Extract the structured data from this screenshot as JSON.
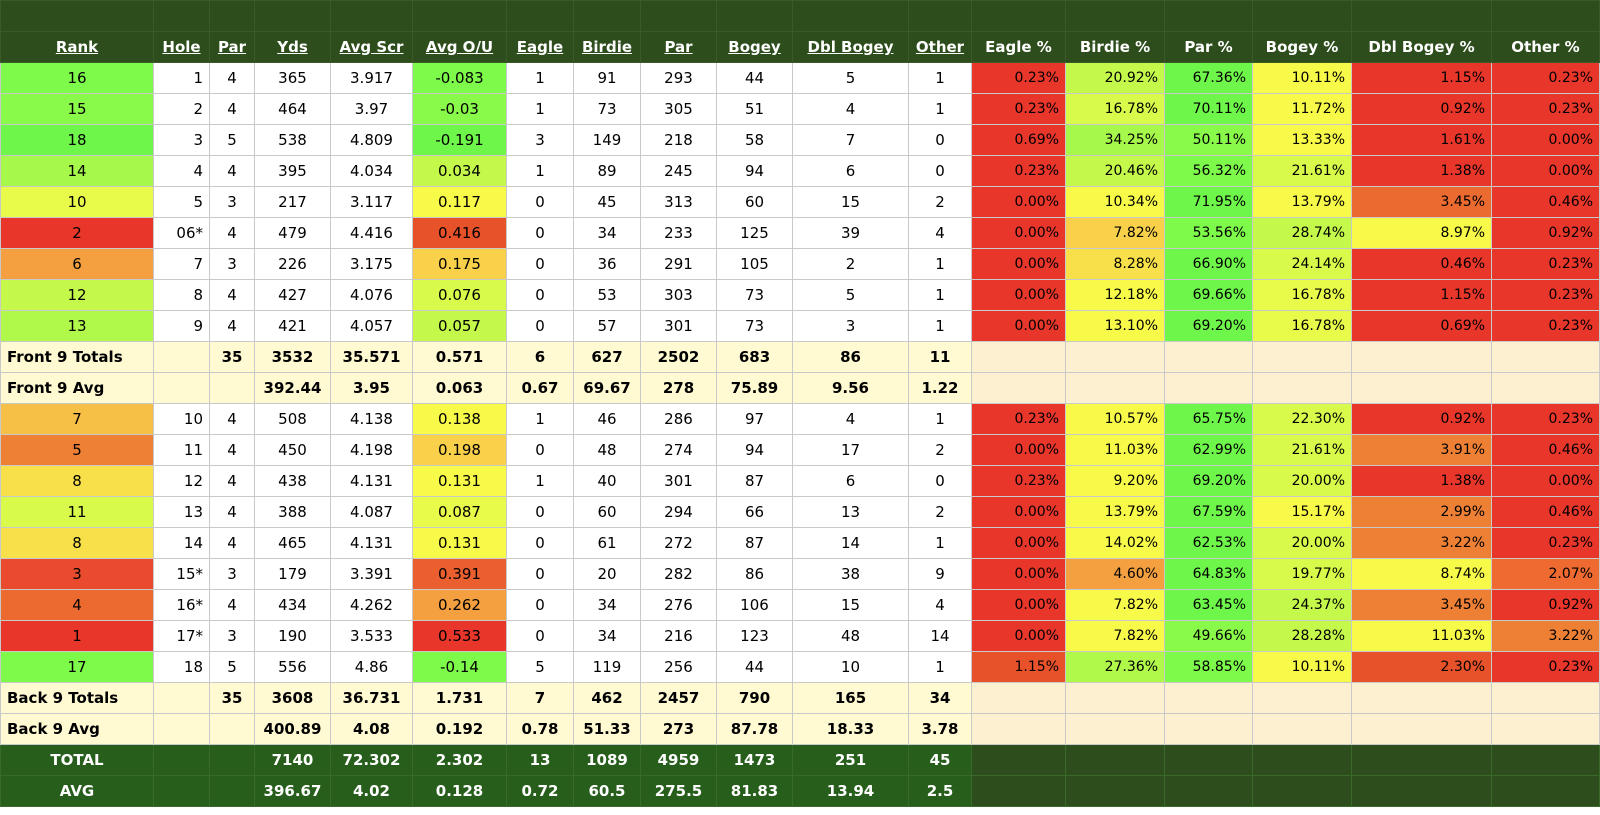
{
  "headers": [
    "Rank",
    "Hole",
    "Par",
    "Yds",
    "Avg Scr",
    "Avg O/U",
    "Eagle",
    "Birdie",
    "Par",
    "Bogey",
    "Dbl Bogey",
    "Other",
    "Eagle %",
    "Birdie %",
    "Par %",
    "Bogey %",
    "Dbl Bogey %",
    "Other %"
  ],
  "rows": [
    {
      "cells": [
        "16",
        "1",
        "4",
        "365",
        "3.917",
        "-0.083",
        "1",
        "91",
        "293",
        "44",
        "5",
        "1",
        "0.23%",
        "20.92%",
        "67.36%",
        "10.11%",
        "1.15%",
        "0.23%"
      ],
      "colors": [
        "#7dfa4a",
        "#ffffff",
        "#ffffff",
        "#ffffff",
        "#ffffff",
        "#7dfa4a",
        "#ffffff",
        "#ffffff",
        "#ffffff",
        "#ffffff",
        "#ffffff",
        "#ffffff",
        "#e8362a",
        "#c4f84a",
        "#6ef64a",
        "#f8fa4a",
        "#e8362a",
        "#e8362a"
      ]
    },
    {
      "cells": [
        "15",
        "2",
        "4",
        "464",
        "3.97",
        "-0.03",
        "1",
        "73",
        "305",
        "51",
        "4",
        "1",
        "0.23%",
        "16.78%",
        "70.11%",
        "11.72%",
        "0.92%",
        "0.23%"
      ],
      "colors": [
        "#8afa4a",
        "#ffffff",
        "#ffffff",
        "#ffffff",
        "#ffffff",
        "#8afa4a",
        "#ffffff",
        "#ffffff",
        "#ffffff",
        "#ffffff",
        "#ffffff",
        "#ffffff",
        "#e8362a",
        "#d8fa4a",
        "#6ef64a",
        "#f8fa4a",
        "#e8362a",
        "#e8362a"
      ]
    },
    {
      "cells": [
        "18",
        "3",
        "5",
        "538",
        "4.809",
        "-0.191",
        "3",
        "149",
        "218",
        "58",
        "7",
        "0",
        "0.69%",
        "34.25%",
        "50.11%",
        "13.33%",
        "1.61%",
        "0.00%"
      ],
      "colors": [
        "#6ef64a",
        "#ffffff",
        "#ffffff",
        "#ffffff",
        "#ffffff",
        "#6ef64a",
        "#ffffff",
        "#ffffff",
        "#ffffff",
        "#ffffff",
        "#ffffff",
        "#ffffff",
        "#e8362a",
        "#a6f84a",
        "#8afa4a",
        "#f8fa4a",
        "#e8362a",
        "#e8362a"
      ]
    },
    {
      "cells": [
        "14",
        "4",
        "4",
        "395",
        "4.034",
        "0.034",
        "1",
        "89",
        "245",
        "94",
        "6",
        "0",
        "0.23%",
        "20.46%",
        "56.32%",
        "21.61%",
        "1.38%",
        "0.00%"
      ],
      "colors": [
        "#a6f84a",
        "#ffffff",
        "#ffffff",
        "#ffffff",
        "#ffffff",
        "#c4f84a",
        "#ffffff",
        "#ffffff",
        "#ffffff",
        "#ffffff",
        "#ffffff",
        "#ffffff",
        "#e8362a",
        "#c4f84a",
        "#7dfa4a",
        "#d8fa4a",
        "#e8362a",
        "#e8362a"
      ]
    },
    {
      "cells": [
        "10",
        "5",
        "3",
        "217",
        "3.117",
        "0.117",
        "0",
        "45",
        "313",
        "60",
        "15",
        "2",
        "0.00%",
        "10.34%",
        "71.95%",
        "13.79%",
        "3.45%",
        "0.46%"
      ],
      "colors": [
        "#e8fa4a",
        "#ffffff",
        "#ffffff",
        "#ffffff",
        "#ffffff",
        "#f8fa4a",
        "#ffffff",
        "#ffffff",
        "#ffffff",
        "#ffffff",
        "#ffffff",
        "#ffffff",
        "#e8362a",
        "#f8fa4a",
        "#6ef64a",
        "#f8fa4a",
        "#ea6a30",
        "#e8362a"
      ]
    },
    {
      "cells": [
        "2",
        "06*",
        "4",
        "479",
        "4.416",
        "0.416",
        "0",
        "34",
        "233",
        "125",
        "39",
        "4",
        "0.00%",
        "7.82%",
        "53.56%",
        "28.74%",
        "8.97%",
        "0.92%"
      ],
      "colors": [
        "#e8362a",
        "#ffffff",
        "#ffffff",
        "#ffffff",
        "#ffffff",
        "#e8522a",
        "#ffffff",
        "#ffffff",
        "#ffffff",
        "#ffffff",
        "#ffffff",
        "#ffffff",
        "#e8362a",
        "#f8d04a",
        "#7dfa4a",
        "#c4f84a",
        "#f8fa4a",
        "#e8362a"
      ]
    },
    {
      "cells": [
        "6",
        "7",
        "3",
        "226",
        "3.175",
        "0.175",
        "0",
        "36",
        "291",
        "105",
        "2",
        "1",
        "0.00%",
        "8.28%",
        "66.90%",
        "24.14%",
        "0.46%",
        "0.23%"
      ],
      "colors": [
        "#f4a040",
        "#ffffff",
        "#ffffff",
        "#ffffff",
        "#ffffff",
        "#f8d04a",
        "#ffffff",
        "#ffffff",
        "#ffffff",
        "#ffffff",
        "#ffffff",
        "#ffffff",
        "#e8362a",
        "#f8e04a",
        "#6ef64a",
        "#d8fa4a",
        "#e8362a",
        "#e8362a"
      ]
    },
    {
      "cells": [
        "12",
        "8",
        "4",
        "427",
        "4.076",
        "0.076",
        "0",
        "53",
        "303",
        "73",
        "5",
        "1",
        "0.00%",
        "12.18%",
        "69.66%",
        "16.78%",
        "1.15%",
        "0.23%"
      ],
      "colors": [
        "#c4f84a",
        "#ffffff",
        "#ffffff",
        "#ffffff",
        "#ffffff",
        "#d8fa4a",
        "#ffffff",
        "#ffffff",
        "#ffffff",
        "#ffffff",
        "#ffffff",
        "#ffffff",
        "#e8362a",
        "#f8fa4a",
        "#6ef64a",
        "#e8fa4a",
        "#e8362a",
        "#e8362a"
      ]
    },
    {
      "cells": [
        "13",
        "9",
        "4",
        "421",
        "4.057",
        "0.057",
        "0",
        "57",
        "301",
        "73",
        "3",
        "1",
        "0.00%",
        "13.10%",
        "69.20%",
        "16.78%",
        "0.69%",
        "0.23%"
      ],
      "colors": [
        "#b0f84a",
        "#ffffff",
        "#ffffff",
        "#ffffff",
        "#ffffff",
        "#c4f84a",
        "#ffffff",
        "#ffffff",
        "#ffffff",
        "#ffffff",
        "#ffffff",
        "#ffffff",
        "#e8362a",
        "#f8fa4a",
        "#6ef64a",
        "#e8fa4a",
        "#e8362a",
        "#e8362a"
      ]
    }
  ],
  "front_totals": {
    "cells": [
      "Front 9 Totals",
      "",
      "35",
      "3532",
      "35.571",
      "0.571",
      "6",
      "627",
      "2502",
      "683",
      "86",
      "11"
    ]
  },
  "front_avg": {
    "cells": [
      "Front 9 Avg",
      "",
      "",
      "392.44",
      "3.95",
      "0.063",
      "0.67",
      "69.67",
      "278",
      "75.89",
      "9.56",
      "1.22"
    ]
  },
  "back_rows": [
    {
      "cells": [
        "7",
        "10",
        "4",
        "508",
        "4.138",
        "0.138",
        "1",
        "46",
        "286",
        "97",
        "4",
        "1",
        "0.23%",
        "10.57%",
        "65.75%",
        "22.30%",
        "0.92%",
        "0.23%"
      ],
      "colors": [
        "#f6c046",
        "#ffffff",
        "#ffffff",
        "#ffffff",
        "#ffffff",
        "#f8fa4a",
        "#ffffff",
        "#ffffff",
        "#ffffff",
        "#ffffff",
        "#ffffff",
        "#ffffff",
        "#e8362a",
        "#f8fa4a",
        "#6ef64a",
        "#d8fa4a",
        "#e8362a",
        "#e8362a"
      ]
    },
    {
      "cells": [
        "5",
        "11",
        "4",
        "450",
        "4.198",
        "0.198",
        "0",
        "48",
        "274",
        "94",
        "17",
        "2",
        "0.00%",
        "11.03%",
        "62.99%",
        "21.61%",
        "3.91%",
        "0.46%"
      ],
      "colors": [
        "#ee8036",
        "#ffffff",
        "#ffffff",
        "#ffffff",
        "#ffffff",
        "#f8d04a",
        "#ffffff",
        "#ffffff",
        "#ffffff",
        "#ffffff",
        "#ffffff",
        "#ffffff",
        "#e8362a",
        "#f8fa4a",
        "#6ef64a",
        "#d8fa4a",
        "#ee8036",
        "#e8362a"
      ]
    },
    {
      "cells": [
        "8",
        "12",
        "4",
        "438",
        "4.131",
        "0.131",
        "1",
        "40",
        "301",
        "87",
        "6",
        "0",
        "0.23%",
        "9.20%",
        "69.20%",
        "20.00%",
        "1.38%",
        "0.00%"
      ],
      "colors": [
        "#f8e04a",
        "#ffffff",
        "#ffffff",
        "#ffffff",
        "#ffffff",
        "#f8fa4a",
        "#ffffff",
        "#ffffff",
        "#ffffff",
        "#ffffff",
        "#ffffff",
        "#ffffff",
        "#e8362a",
        "#f8fa4a",
        "#6ef64a",
        "#d8fa4a",
        "#e8362a",
        "#e8362a"
      ]
    },
    {
      "cells": [
        "11",
        "13",
        "4",
        "388",
        "4.087",
        "0.087",
        "0",
        "60",
        "294",
        "66",
        "13",
        "2",
        "0.00%",
        "13.79%",
        "67.59%",
        "15.17%",
        "2.99%",
        "0.46%"
      ],
      "colors": [
        "#d8fa4a",
        "#ffffff",
        "#ffffff",
        "#ffffff",
        "#ffffff",
        "#e8fa4a",
        "#ffffff",
        "#ffffff",
        "#ffffff",
        "#ffffff",
        "#ffffff",
        "#ffffff",
        "#e8362a",
        "#f8fa4a",
        "#6ef64a",
        "#f8fa4a",
        "#ee8036",
        "#e8362a"
      ]
    },
    {
      "cells": [
        "8",
        "14",
        "4",
        "465",
        "4.131",
        "0.131",
        "0",
        "61",
        "272",
        "87",
        "14",
        "1",
        "0.00%",
        "14.02%",
        "62.53%",
        "20.00%",
        "3.22%",
        "0.23%"
      ],
      "colors": [
        "#f8e04a",
        "#ffffff",
        "#ffffff",
        "#ffffff",
        "#ffffff",
        "#f8fa4a",
        "#ffffff",
        "#ffffff",
        "#ffffff",
        "#ffffff",
        "#ffffff",
        "#ffffff",
        "#e8362a",
        "#f8fa4a",
        "#6ef64a",
        "#d8fa4a",
        "#ee8036",
        "#e8362a"
      ]
    },
    {
      "cells": [
        "3",
        "15*",
        "3",
        "179",
        "3.391",
        "0.391",
        "0",
        "20",
        "282",
        "86",
        "38",
        "9",
        "0.00%",
        "4.60%",
        "64.83%",
        "19.77%",
        "8.74%",
        "2.07%"
      ],
      "colors": [
        "#ea4a2e",
        "#ffffff",
        "#ffffff",
        "#ffffff",
        "#ffffff",
        "#ea5e30",
        "#ffffff",
        "#ffffff",
        "#ffffff",
        "#ffffff",
        "#ffffff",
        "#ffffff",
        "#e8362a",
        "#f4a040",
        "#6ef64a",
        "#d8fa4a",
        "#f8fa4a",
        "#ee6a30"
      ]
    },
    {
      "cells": [
        "4",
        "16*",
        "4",
        "434",
        "4.262",
        "0.262",
        "0",
        "34",
        "276",
        "106",
        "15",
        "4",
        "0.00%",
        "7.82%",
        "63.45%",
        "24.37%",
        "3.45%",
        "0.92%"
      ],
      "colors": [
        "#ec6a30",
        "#ffffff",
        "#ffffff",
        "#ffffff",
        "#ffffff",
        "#f4a040",
        "#ffffff",
        "#ffffff",
        "#ffffff",
        "#ffffff",
        "#ffffff",
        "#ffffff",
        "#e8362a",
        "#f8fa4a",
        "#6ef64a",
        "#c4f84a",
        "#ee8036",
        "#e8362a"
      ]
    },
    {
      "cells": [
        "1",
        "17*",
        "3",
        "190",
        "3.533",
        "0.533",
        "0",
        "34",
        "216",
        "123",
        "48",
        "14",
        "0.00%",
        "7.82%",
        "49.66%",
        "28.28%",
        "11.03%",
        "3.22%"
      ],
      "colors": [
        "#e8362a",
        "#ffffff",
        "#ffffff",
        "#ffffff",
        "#ffffff",
        "#e8362a",
        "#ffffff",
        "#ffffff",
        "#ffffff",
        "#ffffff",
        "#ffffff",
        "#ffffff",
        "#e8362a",
        "#f8fa4a",
        "#8afa4a",
        "#c4f84a",
        "#f8fa4a",
        "#ee8036"
      ]
    },
    {
      "cells": [
        "17",
        "18",
        "5",
        "556",
        "4.86",
        "-0.14",
        "5",
        "119",
        "256",
        "44",
        "10",
        "1",
        "1.15%",
        "27.36%",
        "58.85%",
        "10.11%",
        "2.30%",
        "0.23%"
      ],
      "colors": [
        "#7dfa4a",
        "#ffffff",
        "#ffffff",
        "#ffffff",
        "#ffffff",
        "#7dfa4a",
        "#ffffff",
        "#ffffff",
        "#ffffff",
        "#ffffff",
        "#ffffff",
        "#ffffff",
        "#e8522a",
        "#b0f84a",
        "#7dfa4a",
        "#f8fa4a",
        "#e8522a",
        "#e8362a"
      ]
    }
  ],
  "back_totals": {
    "cells": [
      "Back 9 Totals",
      "",
      "35",
      "3608",
      "36.731",
      "1.731",
      "7",
      "462",
      "2457",
      "790",
      "165",
      "34"
    ]
  },
  "back_avg": {
    "cells": [
      "Back 9 Avg",
      "",
      "",
      "400.89",
      "4.08",
      "0.192",
      "0.78",
      "51.33",
      "273",
      "87.78",
      "18.33",
      "3.78"
    ]
  },
  "grand_total": {
    "cells": [
      "TOTAL",
      "",
      "",
      "7140",
      "72.302",
      "2.302",
      "13",
      "1089",
      "4959",
      "1473",
      "251",
      "45"
    ]
  },
  "grand_avg": {
    "cells": [
      "AVG",
      "",
      "",
      "396.67",
      "4.02",
      "0.128",
      "0.72",
      "60.5",
      "275.5",
      "81.83",
      "13.94",
      "2.5"
    ]
  }
}
